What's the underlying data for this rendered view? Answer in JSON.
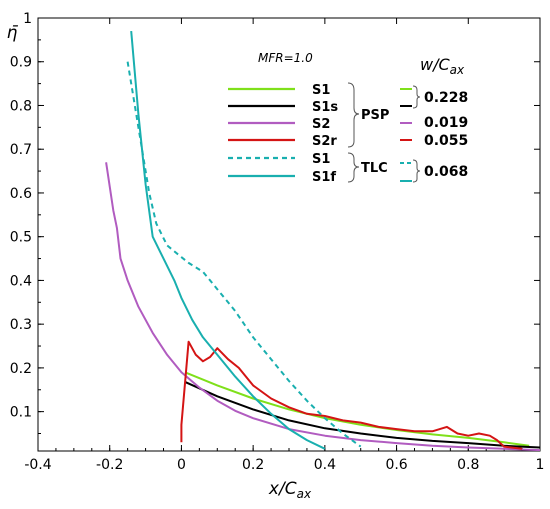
{
  "chart_data": {
    "type": "line",
    "title": "",
    "xlabel": "x/C_ax",
    "ylabel": "η̄",
    "xlim": [
      -0.4,
      1.0
    ],
    "ylim": [
      0.01,
      1.0
    ],
    "xticks": [
      "-0.4",
      "-0.2",
      "0",
      "0.2",
      "0.4",
      "0.6",
      "0.8",
      "1"
    ],
    "yticks": [
      "0.1",
      "0.2",
      "0.3",
      "0.4",
      "0.5",
      "0.6",
      "0.7",
      "0.8",
      "0.9",
      "1"
    ],
    "grid": false,
    "annotation": "MFR=1.0",
    "w_column_title": "w/C_ax",
    "groups": [
      {
        "label": "PSP",
        "series_names": [
          "S1",
          "S1s",
          "S2",
          "S2r"
        ]
      },
      {
        "label": "TLC",
        "series_names": [
          "S1",
          "S1f"
        ]
      }
    ],
    "w_values": [
      {
        "value": "0.228",
        "applies_to": [
          "S1",
          "S1s"
        ]
      },
      {
        "value": "0.019",
        "applies_to": [
          "S2"
        ]
      },
      {
        "value": "0.055",
        "applies_to": [
          "S2r"
        ]
      },
      {
        "value": "0.068",
        "applies_to": [
          "S1 (TLC)",
          "S1f"
        ]
      }
    ],
    "series": [
      {
        "name": "S1",
        "group": "PSP",
        "color": "#7fe01a",
        "dash": "solid",
        "x": [
          0.01,
          0.1,
          0.2,
          0.3,
          0.4,
          0.5,
          0.6,
          0.7,
          0.8,
          0.9,
          0.97
        ],
        "y": [
          0.19,
          0.16,
          0.13,
          0.105,
          0.085,
          0.07,
          0.058,
          0.048,
          0.04,
          0.03,
          0.022
        ]
      },
      {
        "name": "S1s",
        "group": "PSP",
        "color": "#000000",
        "dash": "solid",
        "x": [
          0.01,
          0.1,
          0.2,
          0.3,
          0.4,
          0.5,
          0.6,
          0.7,
          0.8,
          0.9,
          1.0
        ],
        "y": [
          0.168,
          0.135,
          0.105,
          0.08,
          0.062,
          0.05,
          0.04,
          0.033,
          0.028,
          0.022,
          0.018
        ]
      },
      {
        "name": "S2",
        "group": "PSP",
        "color": "#b15cc0",
        "dash": "solid",
        "x": [
          -0.21,
          -0.19,
          -0.18,
          -0.17,
          -0.15,
          -0.12,
          -0.08,
          -0.04,
          0.0,
          0.05,
          0.1,
          0.15,
          0.2,
          0.3,
          0.4,
          0.5,
          0.6,
          0.7,
          0.8,
          0.9,
          1.0
        ],
        "y": [
          0.67,
          0.56,
          0.52,
          0.45,
          0.4,
          0.34,
          0.28,
          0.23,
          0.19,
          0.155,
          0.125,
          0.102,
          0.085,
          0.06,
          0.045,
          0.035,
          0.028,
          0.022,
          0.018,
          0.015,
          0.012
        ]
      },
      {
        "name": "S2r",
        "group": "PSP",
        "color": "#d41414",
        "dash": "solid",
        "x": [
          0.0,
          0.0,
          0.02,
          0.04,
          0.06,
          0.08,
          0.1,
          0.13,
          0.16,
          0.2,
          0.25,
          0.3,
          0.35,
          0.4,
          0.45,
          0.5,
          0.55,
          0.6,
          0.65,
          0.7,
          0.74,
          0.77,
          0.8,
          0.83,
          0.86,
          0.88,
          0.9,
          0.95
        ],
        "y": [
          0.03,
          0.07,
          0.26,
          0.23,
          0.215,
          0.225,
          0.245,
          0.22,
          0.2,
          0.16,
          0.13,
          0.11,
          0.095,
          0.09,
          0.08,
          0.075,
          0.065,
          0.06,
          0.055,
          0.055,
          0.065,
          0.05,
          0.045,
          0.05,
          0.045,
          0.035,
          0.02,
          0.015
        ]
      },
      {
        "name": "S1",
        "group": "TLC",
        "color": "#19afaf",
        "dash": "dashed",
        "x": [
          -0.15,
          -0.12,
          -0.09,
          -0.07,
          -0.04,
          -0.01,
          0.02,
          0.06,
          0.1,
          0.15,
          0.2,
          0.25,
          0.3,
          0.35,
          0.4,
          0.45,
          0.5
        ],
        "y": [
          0.9,
          0.75,
          0.6,
          0.53,
          0.48,
          0.46,
          0.44,
          0.42,
          0.38,
          0.33,
          0.27,
          0.22,
          0.17,
          0.125,
          0.085,
          0.05,
          0.02
        ]
      },
      {
        "name": "S1f",
        "group": "TLC",
        "color": "#19afaf",
        "dash": "solid",
        "x": [
          -0.14,
          -0.12,
          -0.1,
          -0.08,
          -0.05,
          -0.02,
          0.0,
          0.03,
          0.06,
          0.1,
          0.15,
          0.2,
          0.25,
          0.3,
          0.35,
          0.4
        ],
        "y": [
          0.97,
          0.78,
          0.62,
          0.5,
          0.45,
          0.4,
          0.36,
          0.31,
          0.27,
          0.23,
          0.18,
          0.135,
          0.095,
          0.06,
          0.035,
          0.015
        ]
      }
    ]
  }
}
